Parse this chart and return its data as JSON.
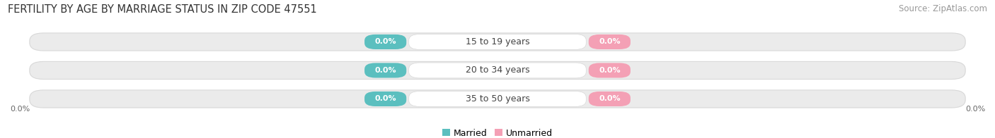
{
  "title": "FERTILITY BY AGE BY MARRIAGE STATUS IN ZIP CODE 47551",
  "source_text": "Source: ZipAtlas.com",
  "categories": [
    "15 to 19 years",
    "20 to 34 years",
    "35 to 50 years"
  ],
  "married_values": [
    0.0,
    0.0,
    0.0
  ],
  "unmarried_values": [
    0.0,
    0.0,
    0.0
  ],
  "married_color": "#5BBFBF",
  "unmarried_color": "#F4A0B5",
  "bar_bg_color": "#EBEBEB",
  "bar_height": 0.62,
  "title_fontsize": 10.5,
  "source_fontsize": 8.5,
  "value_fontsize": 8,
  "category_fontsize": 9,
  "legend_fontsize": 9,
  "axis_label_0": "0.0%",
  "married_label": "Married",
  "unmarried_label": "Unmarried",
  "background_color": "#FFFFFF",
  "bar_edge_color": "#D8D8D8",
  "center_bg": "#FFFFFF"
}
